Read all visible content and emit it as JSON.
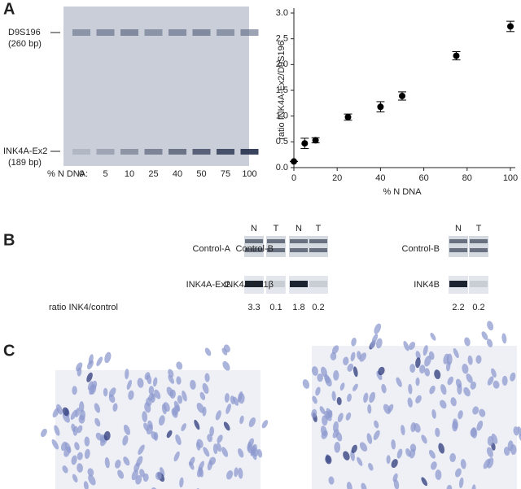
{
  "panel_a": {
    "label": "A",
    "gel": {
      "marker_top": "D9S196",
      "marker_top_size": "(260 bp)",
      "marker_bottom": "INK4A-Ex2",
      "marker_bottom_size": "(189 bp)",
      "lane_axis": "% N DNA:",
      "lanes": [
        "0",
        "5",
        "10",
        "25",
        "40",
        "50",
        "75",
        "100"
      ]
    }
  },
  "chart_data": {
    "type": "scatter",
    "x": [
      0,
      5,
      10,
      25,
      40,
      50,
      75,
      100
    ],
    "values": [
      0.12,
      0.47,
      0.53,
      0.98,
      1.18,
      1.39,
      2.17,
      2.74
    ],
    "errors": [
      0,
      0.1,
      0.05,
      0.06,
      0.1,
      0.08,
      0.08,
      0.1
    ],
    "color": "#000000",
    "xlabel": "% N DNA",
    "ylabel": "ratio INK4A-Ex2/D9S196",
    "xlim": [
      0,
      100
    ],
    "xticks": [
      0,
      20,
      40,
      60,
      80,
      100
    ],
    "ylim": [
      0,
      3
    ],
    "yticks": [
      {
        "value": 0,
        "label": "0.0"
      },
      {
        "value": 0.5,
        "label": "0.5"
      },
      {
        "value": 1,
        "label": "1.0"
      },
      {
        "value": 1.5,
        "label": "1.5"
      },
      {
        "value": 2,
        "label": "2.0"
      },
      {
        "value": 2.5,
        "label": "2.5"
      },
      {
        "value": 3,
        "label": "3.0"
      }
    ]
  },
  "panel_b": {
    "label": "B",
    "ratio_label": "ratio INK4/control",
    "blots": [
      {
        "lanes": [
          "N",
          "T"
        ],
        "control": "Control-A",
        "target": "INK4A-Ex2",
        "ratios": [
          "3.3",
          "0.1"
        ]
      },
      {
        "lanes": [
          "N",
          "T"
        ],
        "control": "Control-B",
        "target": "INK4A-Ex1β",
        "ratios": [
          "1.8",
          "0.2"
        ]
      },
      {
        "lanes": [
          "N",
          "T"
        ],
        "control": "Control-B",
        "target": "INK4B",
        "ratios": [
          "2.2",
          "0.2"
        ]
      }
    ]
  },
  "panel_c": {
    "label": "C"
  }
}
